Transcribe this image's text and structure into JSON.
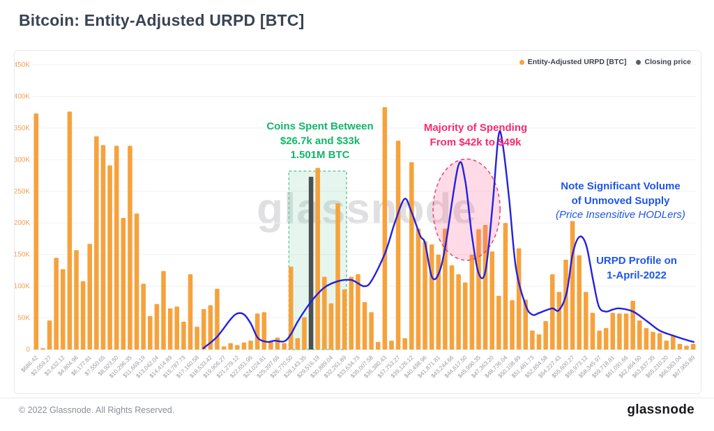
{
  "header": {
    "title": "Bitcoin: Entity-Adjusted URPD [BTC]"
  },
  "legend": {
    "items": [
      {
        "label": "Entity-Adjusted URPD [BTC]",
        "color": "#F6A23C"
      },
      {
        "label": "Closing price",
        "color": "#5b6064"
      }
    ]
  },
  "watermark": "glassnode",
  "annotations": {
    "green": {
      "line1": "Coins Spent Between",
      "line2": "$26.7k and $33k",
      "line3": "1.501M BTC",
      "color": "#12b76a"
    },
    "pink": {
      "line1": "Majority of Spending",
      "line2": "From $42k to $49k",
      "color": "#fa2a6c"
    },
    "blue_supply": {
      "line1": "Note Significant Volume",
      "line2": "of Unmoved Supply",
      "line3": "(Price Insensitive HODLers)",
      "color": "#1d55ec"
    },
    "blue_profile": {
      "line1": "URPD Profile on",
      "line2": "1-April-2022",
      "color": "#1d55ec"
    }
  },
  "footer": {
    "copyright": "© 2022 Glassnode. All Rights Reserved.",
    "brand": "glassnode"
  },
  "chart_data": {
    "type": "bar",
    "title": "Bitcoin: Entity-Adjusted URPD [BTC]",
    "legend_position": "top-right",
    "grid": true,
    "ylim_btc": [
      0,
      450000
    ],
    "y_ticks": [
      "0",
      "50K",
      "100K",
      "150K",
      "200K",
      "250K",
      "300K",
      "350K",
      "400K",
      "450K"
    ],
    "bucket_width_usd": 686.42,
    "x_tick_labels": [
      "$686.42",
      "$2,059.27",
      "$3,432.12",
      "$4,804.96",
      "$6,177.81",
      "$7,550.65",
      "$8,923.50",
      "$10,296.35",
      "$11,669.19",
      "$13,042.04",
      "$14,414.89",
      "$15,787.73",
      "$17,160.58",
      "$18,533.42",
      "$19,906.27",
      "$21,279.12",
      "$22,651.96",
      "$24,024.81",
      "$25,397.66",
      "$26,770.50",
      "$28,143.35",
      "$29,516.19",
      "$30,889.04",
      "$32,261.89",
      "$33,634.73",
      "$35,007.58",
      "$36,380.43",
      "$37,753.27",
      "$39,126.12",
      "$40,498.96",
      "$41,871.81",
      "$43,244.66",
      "$44,617.50",
      "$45,990.35",
      "$47,363.20",
      "$48,736.04",
      "$50,108.89",
      "$51,481.73",
      "$52,854.58",
      "$54,227.43",
      "$55,600.27",
      "$56,973.12",
      "$58,345.97",
      "$59,718.81",
      "$61,091.66",
      "$62,464.50",
      "$63,837.35",
      "$65,210.20",
      "$66,583.04",
      "$67,955.89"
    ],
    "bars_series_name": "Entity-Adjusted URPD [BTC]",
    "bar_values_btc_thousands": [
      373,
      2,
      46,
      145,
      127,
      376,
      157,
      108,
      167,
      337,
      323,
      291,
      322,
      208,
      322,
      215,
      104,
      53,
      72,
      124,
      65,
      68,
      44,
      119,
      36,
      64,
      70,
      96,
      5,
      10,
      7,
      11,
      14,
      57,
      59,
      14,
      19,
      10,
      131,
      18,
      51,
      273,
      287,
      115,
      73,
      231,
      95,
      115,
      119,
      75,
      59,
      12,
      383,
      14,
      330,
      18,
      296,
      191,
      171,
      166,
      150,
      191,
      133,
      119,
      106,
      150,
      190,
      197,
      155,
      85,
      200,
      78,
      160,
      79,
      30,
      24,
      45,
      119,
      91,
      142,
      203,
      149,
      91,
      58,
      30,
      34,
      58,
      57,
      57,
      77,
      46,
      34,
      28,
      26,
      14,
      22,
      9,
      6,
      9
    ],
    "closing_price_bar": {
      "bucket_index": 42,
      "approx_price_usd": "$28,830",
      "value_btc_thousands": 273
    },
    "line_series_name": "URPD Profile on 1-April-2022",
    "line_points_price_k_vs_btc_thousands": [
      [
        17.8,
        2
      ],
      [
        19.2,
        20
      ],
      [
        20.6,
        48
      ],
      [
        21.3,
        57
      ],
      [
        22.0,
        55
      ],
      [
        22.7,
        40
      ],
      [
        23.4,
        18
      ],
      [
        24.4,
        12
      ],
      [
        25.1,
        14
      ],
      [
        26.1,
        13
      ],
      [
        26.8,
        25
      ],
      [
        27.5,
        45
      ],
      [
        28.8,
        75
      ],
      [
        30.2,
        98
      ],
      [
        31.6,
        108
      ],
      [
        32.9,
        110
      ],
      [
        33.6,
        105
      ],
      [
        34.3,
        100
      ],
      [
        35.0,
        108
      ],
      [
        36.4,
        152
      ],
      [
        37.4,
        200
      ],
      [
        38.4,
        238
      ],
      [
        39.1,
        218
      ],
      [
        40.0,
        180
      ],
      [
        40.5,
        168
      ],
      [
        41.2,
        115
      ],
      [
        41.9,
        120
      ],
      [
        42.6,
        165
      ],
      [
        43.9,
        290
      ],
      [
        44.6,
        268
      ],
      [
        45.3,
        180
      ],
      [
        46.0,
        120
      ],
      [
        46.7,
        125
      ],
      [
        47.4,
        225
      ],
      [
        48.0,
        335
      ],
      [
        48.4,
        330
      ],
      [
        49.1,
        240
      ],
      [
        49.8,
        130
      ],
      [
        50.8,
        70
      ],
      [
        51.5,
        55
      ],
      [
        52.2,
        58
      ],
      [
        53.5,
        65
      ],
      [
        54.2,
        62
      ],
      [
        55.0,
        90
      ],
      [
        55.6,
        150
      ],
      [
        56.3,
        178
      ],
      [
        57.0,
        165
      ],
      [
        57.7,
        110
      ],
      [
        58.3,
        68
      ],
      [
        59.0,
        60
      ],
      [
        59.7,
        63
      ],
      [
        60.4,
        65
      ],
      [
        61.8,
        60
      ],
      [
        63.2,
        45
      ],
      [
        64.5,
        30
      ],
      [
        65.9,
        22
      ],
      [
        67.3,
        15
      ],
      [
        68.0,
        12
      ]
    ],
    "highlight_box": {
      "x1_bucket": 38.2,
      "x2_bucket": 46.8,
      "top_btc_thousands": 282
    },
    "highlight_ellipse": {
      "cx_bucket": 64.7,
      "cy_btc_thousands": 221,
      "rx_buckets": 5.0,
      "ry_btc_thousands": 80
    },
    "colors": {
      "bar": "#F6A23C",
      "closing_bar": "#4b5152",
      "line": "#2320e3",
      "grid": "#f2f2f4",
      "baseline": "#e3e3e6",
      "axis_label_y": "#f0a254",
      "axis_label_x": "#9a9aa2",
      "box_fill": "rgba(118,205,162,0.18)",
      "box_border": "#5ec694",
      "ellipse_fill": "rgba(250,90,140,0.22)",
      "ellipse_border": "#ee4071"
    }
  }
}
